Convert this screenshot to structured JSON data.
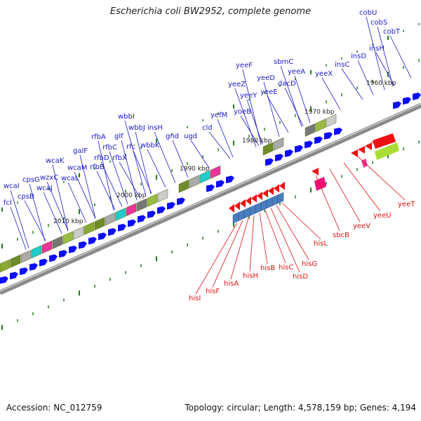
{
  "title": "Escherichia coli BW2952, complete genome",
  "footer": {
    "accession": "Accession: NC_012759",
    "stats": "Topology: circular; Length: 4,578,159 bp; Genes: 4,194"
  },
  "colors": {
    "plus_label": "#1a1acc",
    "minus_label": "#dd1111",
    "plus_gene": "#0a0aff",
    "minus_gene": "#ee1111",
    "backbone": "#777777",
    "tick": "#1f7a1f"
  },
  "kbp_labels": [
    "2010 kbp",
    "2000 kbp",
    "1990 kbp",
    "1980 kbp",
    "1970 kbp",
    "1960 kbp"
  ],
  "plus_genes": [
    "fcl",
    "wcaI",
    "cpsB",
    "cpsG",
    "wcaJ",
    "wzxC",
    "wcaK",
    "wcaL",
    "wcaM",
    "galF",
    "rfbB",
    "rfbD",
    "rfbA",
    "rfbC",
    "rfbX",
    "glf",
    "rfc",
    "wbbI",
    "wbbJ",
    "wbbK",
    "insH",
    "gnd",
    "ugd",
    "cld",
    "yefM",
    "yoeB",
    "yeeZ",
    "yeeY",
    "yeeF",
    "yeeE",
    "yeeD",
    "dacD",
    "sbmC",
    "yeeA",
    "yeeX",
    "insC",
    "insD",
    "insH",
    "cobT",
    "cobS",
    "cobU"
  ],
  "minus_genes": [
    "hisI",
    "hisF",
    "hisA",
    "hisH",
    "hisB",
    "hisC",
    "hisD",
    "hisG",
    "hisL",
    "sbcB",
    "yeeV",
    "yeeU",
    "yeeT"
  ]
}
